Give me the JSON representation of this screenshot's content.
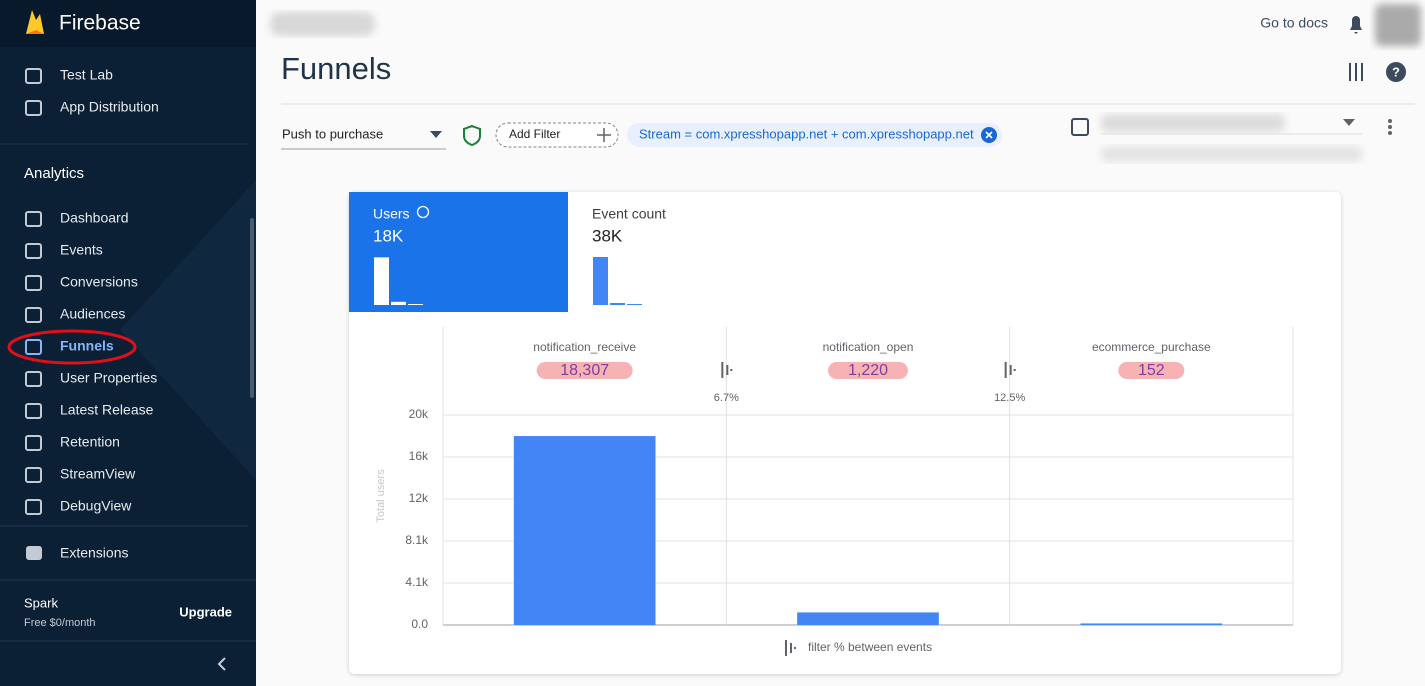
{
  "sidebar": {
    "brand": "Firebase",
    "items_top": [
      "Test Lab",
      "App Distribution"
    ],
    "section": "Analytics",
    "items": [
      "Dashboard",
      "Events",
      "Conversions",
      "Audiences",
      "Funnels",
      "User Properties",
      "Latest Release",
      "Retention",
      "StreamView",
      "DebugView"
    ],
    "extensions": "Extensions",
    "plan": "Spark",
    "plan_price": "Free $0/month",
    "upgrade": "Upgrade"
  },
  "header": {
    "docs": "Go to docs",
    "title": "Funnels"
  },
  "filters": {
    "funnel": "Push to purchase",
    "add_filter": "Add Filter",
    "stream": "Stream = com.xpresshopapp.net + com.xpresshopapp.net"
  },
  "tabs": [
    {
      "label": "Users",
      "value": "18K"
    },
    {
      "label": "Event count",
      "value": "38K"
    }
  ],
  "chart_data": {
    "type": "bar",
    "categories": [
      "notification_receive",
      "notification_open",
      "ecommerce_purchase"
    ],
    "values": [
      18307,
      1220,
      152
    ],
    "value_labels": [
      "18,307",
      "1,220",
      "152"
    ],
    "conversion_labels": [
      "6.7%",
      "12.5%"
    ],
    "y_label": "Total users",
    "color": "#4285f4",
    "ylim": [
      0,
      20350
    ],
    "yticks": [
      {
        "value": 0,
        "label": "0.0"
      },
      {
        "value": 4070,
        "label": "4.1k"
      },
      {
        "value": 8140,
        "label": "8.1k"
      },
      {
        "value": 12210,
        "label": "12k"
      },
      {
        "value": 16280,
        "label": "16k"
      },
      {
        "value": 20350,
        "label": "20k"
      }
    ],
    "grid": true,
    "footer_note": "filter % between events"
  }
}
